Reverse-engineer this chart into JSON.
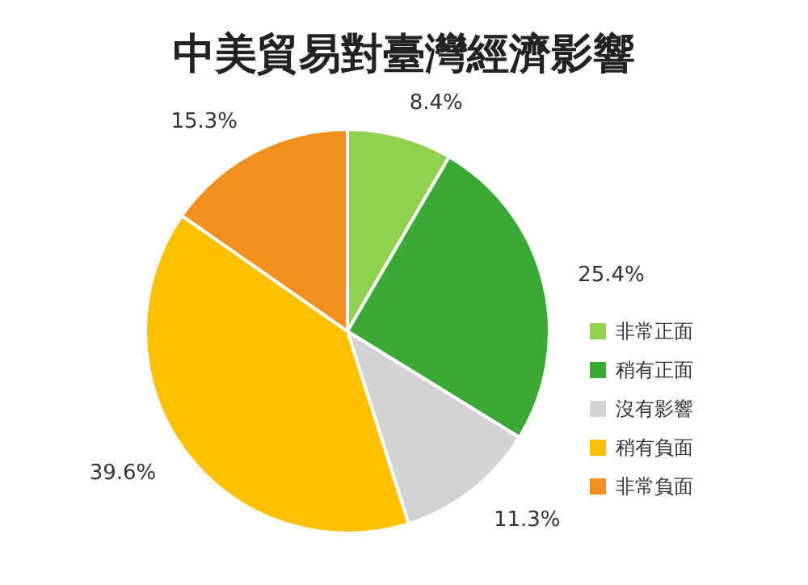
{
  "chart_data": {
    "type": "pie",
    "title": "中美貿易對臺灣經濟影響",
    "categories": [
      "非常正面",
      "稍有正面",
      "沒有影響",
      "稍有負面",
      "非常負面"
    ],
    "values": [
      8.4,
      25.4,
      11.3,
      39.6,
      15.3
    ],
    "value_labels": [
      "8.4%",
      "25.4%",
      "11.3%",
      "39.6%",
      "15.3%"
    ],
    "colors": [
      "#92d050",
      "#3aa935",
      "#d3d3d3",
      "#ffc000",
      "#f1901c"
    ],
    "legend": "right"
  }
}
